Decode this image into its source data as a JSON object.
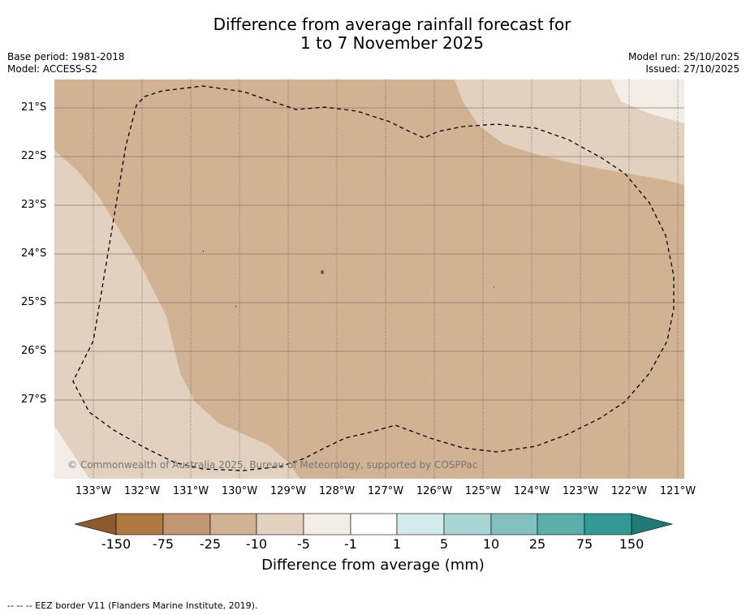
{
  "header": {
    "title_line1": "Difference from average rainfall forecast for",
    "title_line2": "1 to 7 November 2025",
    "base_period": "Base period: 1981-2018",
    "model": "Model: ACCESS-S2",
    "model_run": "Model run: 25/10/2025",
    "issued": "Issued: 27/10/2025"
  },
  "map": {
    "latitude_labels": [
      "21°S",
      "22°S",
      "23°S",
      "24°S",
      "25°S",
      "26°S",
      "27°S"
    ],
    "longitude_labels": [
      "133°W",
      "132°W",
      "131°W",
      "130°W",
      "129°W",
      "128°W",
      "127°W",
      "126°W",
      "125°W",
      "124°W",
      "123°W",
      "122°W",
      "121°W"
    ],
    "copyright": "© Commonwealth of Australia 2025, Bureau of Meteorology, supported by COSPPac"
  },
  "colorbar": {
    "title": "Difference from average (mm)",
    "tick_labels": [
      "-150",
      "-75",
      "-25",
      "-10",
      "-5",
      "-1",
      "1",
      "5",
      "10",
      "25",
      "75",
      "150"
    ],
    "colors": [
      "#8c5a2d",
      "#ae7841",
      "#c29670",
      "#d1b293",
      "#e3d1c0",
      "#f2ede6",
      "#ffffff",
      "#d3eceb",
      "#a9d5d5",
      "#83c1c0",
      "#5caeab",
      "#329994",
      "#1f7a76"
    ]
  },
  "footer": {
    "legend": "--  --  -- EEZ border V11 (Flanders Marine Institute, 2019)."
  }
}
